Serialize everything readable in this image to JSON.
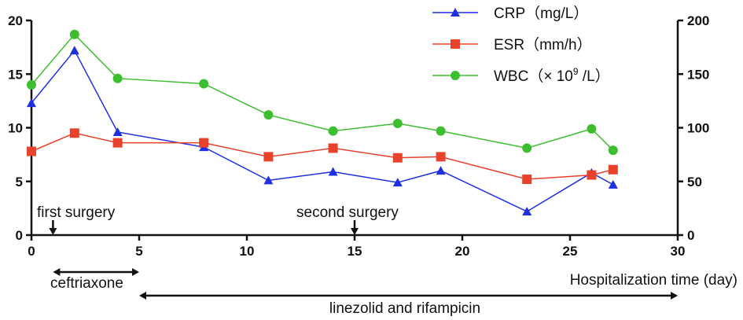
{
  "chart_data": {
    "type": "line",
    "xlabel": "Hospitalization time (day)",
    "xlim": [
      0,
      30
    ],
    "x_ticks": [
      0,
      5,
      10,
      15,
      20,
      25,
      30
    ],
    "y_left": {
      "lim": [
        0,
        20
      ],
      "ticks": [
        0,
        5,
        10,
        15,
        20
      ]
    },
    "y_right": {
      "lim": [
        0,
        200
      ],
      "ticks": [
        0,
        50,
        100,
        150,
        200
      ]
    },
    "series": [
      {
        "key": "crp",
        "name": "CRP（mg/L）",
        "color": "#1f2fe0",
        "marker": "triangle",
        "axis": "left",
        "x": [
          0,
          2,
          4,
          8,
          11,
          14,
          17,
          19,
          23,
          26,
          27
        ],
        "values": [
          12.3,
          17.2,
          9.6,
          8.2,
          5.1,
          5.9,
          4.9,
          6.0,
          2.2,
          5.8,
          4.7
        ]
      },
      {
        "key": "esr",
        "name": "ESR（mm/h）",
        "color": "#e8412c",
        "marker": "square",
        "axis": "left",
        "x": [
          0,
          2,
          4,
          8,
          11,
          14,
          17,
          19,
          23,
          26,
          27
        ],
        "values": [
          7.8,
          9.5,
          8.6,
          8.6,
          7.3,
          8.1,
          7.2,
          7.3,
          5.2,
          5.6,
          6.1
        ]
      },
      {
        "key": "wbc",
        "name_prefix": "WBC（× 10",
        "name_sup": "9",
        "name_suffix": " /L）",
        "color": "#3dbe2f",
        "marker": "circle",
        "axis": "left",
        "x": [
          0,
          2,
          4,
          8,
          11,
          14,
          17,
          19,
          23,
          26,
          27
        ],
        "values": [
          14.0,
          18.7,
          14.6,
          14.1,
          11.2,
          9.7,
          10.4,
          9.7,
          8.1,
          9.9,
          7.9
        ]
      }
    ],
    "annotations": {
      "surgeries": [
        {
          "label": "first surgery",
          "day": 1
        },
        {
          "label": "second surgery",
          "day": 15
        }
      ],
      "treatments": [
        {
          "label": "ceftriaxone",
          "start": 1,
          "end": 5
        },
        {
          "label": "linezolid and rifampicin",
          "start": 5,
          "end": 30
        }
      ]
    }
  }
}
